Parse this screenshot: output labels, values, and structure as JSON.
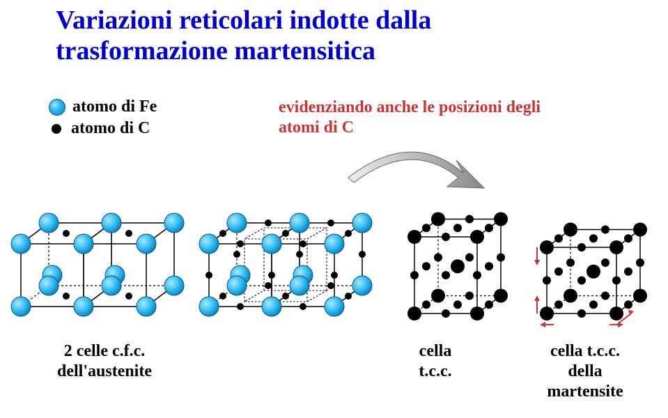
{
  "title_line1": "Variazioni reticolari indotte dalla",
  "title_line2": "trasformazione martensitica",
  "legend": {
    "fe": "atomo di Fe",
    "c": "atomo di C"
  },
  "subtitle_line1": "evidenziando anche le posizioni degli",
  "subtitle_line2": "atomi di C",
  "captions": {
    "cell1_line1": "2 celle c.f.c.",
    "cell1_line2": "dell'austenite",
    "cell2_line1": "cella",
    "cell2_line2": "t.c.c.",
    "cell3_line1": "cella t.c.c.",
    "cell3_line2": "della",
    "cell3_line3": "martensite"
  },
  "colors": {
    "title": "#0000cc",
    "subtitle": "#cc3333",
    "fe_atom_outer": "#0a7fb8",
    "fe_atom_inner": "#a8e9ff",
    "c_atom": "#000000",
    "cell_edge": "#000000",
    "back_edge_dash": "3,3",
    "distort_arrow": "#cc3333",
    "background": "#ffffff"
  },
  "typography": {
    "title_fontsize": 38,
    "subtitle_fontsize": 24,
    "legend_fontsize": 24,
    "caption_fontsize": 24,
    "font_family": "Times New Roman"
  },
  "geometry": {
    "fe_radius": 14,
    "c_radius": 5,
    "perspective_dx": 40,
    "perspective_dy": -30,
    "cell1_a": 90,
    "cell2_a": 90,
    "cell2_h": 110,
    "cell3_a": 100,
    "cell3_h": 95
  }
}
